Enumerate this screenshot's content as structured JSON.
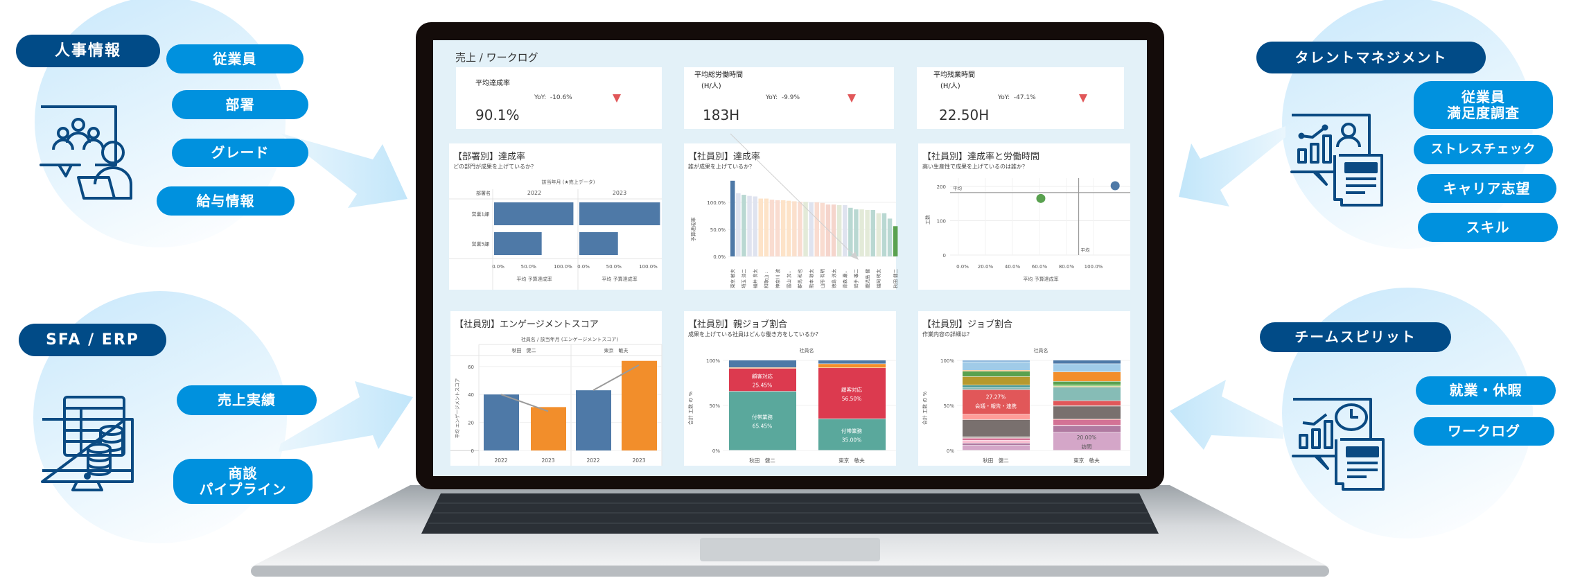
{
  "left_top": {
    "header": "人事情報",
    "items": [
      "従業員",
      "部署",
      "グレード",
      "給与情報"
    ]
  },
  "left_bottom": {
    "header": "SFA / ERP",
    "items": [
      "売上実績",
      "商談\nパイプライン"
    ]
  },
  "right_top": {
    "header": "タレントマネジメント",
    "items": [
      "従業員\n満足度調査",
      "ストレスチェック",
      "キャリア志望",
      "スキル"
    ]
  },
  "right_bottom": {
    "header": "チームスピリット",
    "items": [
      "就業・休暇",
      "ワークログ"
    ]
  },
  "colors": {
    "pill_dark": "#014b87",
    "pill_light": "#0091de",
    "icon": "#0a4a82",
    "down": "#e15759"
  },
  "dashboard": {
    "title": "売上 / ワークログ",
    "kpis": [
      {
        "label": "平均達成率",
        "yoy_label": "YoY:",
        "yoy": "-10.6%",
        "value": "90.1%"
      },
      {
        "label": "平均総労働時間\n　(H/人)",
        "yoy_label": "YoY:",
        "yoy": "-9.9%",
        "value": "183H"
      },
      {
        "label": "平均残業時間\n　(H/人)",
        "yoy_label": "YoY:",
        "yoy": "-47.1%",
        "value": "22.50H"
      }
    ]
  },
  "chart_data": [
    {
      "type": "bar",
      "orientation": "horizontal",
      "title": "【部署別】達成率",
      "subtitle": "どの部門が成果を上げているか？",
      "column_header": "該当年月 (★売上データ)",
      "row_header": "部署名",
      "categories": [
        "営業1課",
        "営業5課"
      ],
      "series": [
        {
          "name": "2022",
          "values": [
            115,
            69
          ]
        },
        {
          "name": "2023",
          "values": [
            117,
            56
          ]
        }
      ],
      "xticks": [
        0,
        50,
        100
      ],
      "xtick_labels": [
        "0.0%",
        "50.0%",
        "100.0%"
      ],
      "xlabel": "平均 予算達成率",
      "xlim": [
        0,
        121
      ],
      "color": "#4e79a7"
    },
    {
      "type": "bar",
      "title": "【社員別】達成率",
      "subtitle": "誰が成果を上げているか？",
      "ylabel": "予算達成率",
      "ylim": [
        0,
        140
      ],
      "yticks": [
        0,
        50,
        100
      ],
      "ytick_labels": [
        "0.0%",
        "50.0%",
        "100.0%"
      ],
      "values": [
        140,
        117,
        114,
        112,
        111,
        107,
        107,
        105,
        104,
        104,
        103,
        102,
        101,
        101,
        100,
        100,
        99,
        96,
        96,
        95,
        95,
        90,
        87,
        87,
        86,
        86,
        80,
        80,
        70,
        56
      ],
      "labels": [
        "東京 敏夫",
        "",
        "埼玉 浩二",
        "",
        "福井 良太",
        "",
        "和歌山 :",
        "",
        "神奈川 波",
        "",
        "富山 加..",
        "",
        "群馬 和也",
        "",
        "熊本 敦太",
        "",
        "山形 有明",
        "",
        "徳島 涼太",
        "",
        "青森 巖..",
        "",
        "岩手 雄二",
        "",
        "鹿児島 健",
        "",
        "福岡 明太",
        "",
        "",
        "秋田 健二"
      ],
      "colors": [
        "#4e79a7",
        "#dfe3ef",
        "#b9d8d2",
        "#dfe3ef",
        "#dfe3ef",
        "#fde3c8",
        "#fde3c8",
        "#f9dcd0",
        "#f9dcd0",
        "#fde3c8",
        "#fde3c8",
        "#fbe0cc",
        "#f9dcd0",
        "#e3ead8",
        "#dfe3ef",
        "#f9dcd0",
        "#f9dcd0",
        "#f5d5cc",
        "#f5d5cc",
        "#e3ead8",
        "#dfe3ef",
        "#b9d8d2",
        "#b9d8d2",
        "#e3ead8",
        "#e3ead8",
        "#b9d8d2",
        "#e3ead8",
        "#b9d8d2",
        "#b9d8d2",
        "#59a14f"
      ]
    },
    {
      "type": "scatter",
      "title": "【社員別】達成率と労働時間",
      "subtitle": "高い生産性で成果を上げているのは誰か？",
      "xlabel": "平均 予算達成率",
      "ylabel": "工数",
      "xlim": [
        0,
        127
      ],
      "ylim": [
        0,
        224
      ],
      "xticks": [
        0,
        20,
        40,
        60,
        80,
        100
      ],
      "xtick_labels": [
        "0.0%",
        "20.0%",
        "40.0%",
        "60.0%",
        "80.0%",
        "100.0%"
      ],
      "yticks": [
        0,
        100,
        200
      ],
      "ytick_labels": [
        "0",
        "100",
        "200"
      ],
      "points": [
        {
          "x": 116,
          "y": 202,
          "color": "#4e79a7"
        },
        {
          "x": 61,
          "y": 165,
          "color": "#59a14f"
        }
      ],
      "avg_x": 89,
      "avg_y": 182,
      "avg_label": "平均"
    },
    {
      "type": "bar",
      "title": "【社員別】エンゲージメントスコア",
      "header": "社員名 / 該当年月 (エンゲージメントスコア)",
      "ylabel": "平均 エンゲージメントスコア",
      "ylim": [
        0,
        64
      ],
      "yticks": [
        0,
        20,
        40,
        60
      ],
      "ytick_labels": [
        "0",
        "20",
        "40",
        "60"
      ],
      "groups": [
        {
          "name": "秋田　健二",
          "years": [
            "2022",
            "2023"
          ],
          "values": [
            40,
            31
          ]
        },
        {
          "name": "東京　敏夫",
          "years": [
            "2022",
            "2023"
          ],
          "values": [
            43,
            64
          ]
        }
      ],
      "colors": [
        "#4e79a7",
        "#f28e2b"
      ]
    },
    {
      "type": "bar",
      "stacked": true,
      "title": "【社員別】親ジョブ割合",
      "subtitle": "成果を上げている社員はどんな働き方をしているか？",
      "header": "社員名",
      "ylabel": "合計 工数 の %",
      "yticks": [
        0,
        50,
        100
      ],
      "ytick_labels": [
        "0%",
        "50%",
        "100%"
      ],
      "categories": [
        "秋田　健二",
        "東京　敏夫"
      ],
      "stacks": [
        [
          {
            "label": "付帯業務",
            "pct": 65.45,
            "text": "65.45%",
            "color": "#5aa89c"
          },
          {
            "label": "顧客対応",
            "pct": 25.45,
            "text": "25.45%",
            "color": "#dc3a4f"
          },
          {
            "pct": 0.9,
            "color": "#f28e2b"
          },
          {
            "pct": 8.2,
            "color": "#4e79a7"
          }
        ],
        [
          {
            "label": "付帯業務",
            "pct": 35.0,
            "text": "35.00%",
            "color": "#5aa89c"
          },
          {
            "label": "顧客対応",
            "pct": 56.5,
            "text": "56.50%",
            "color": "#dc3a4f"
          },
          {
            "pct": 4.5,
            "color": "#f28e2b"
          },
          {
            "pct": 4.0,
            "color": "#4e79a7"
          }
        ]
      ]
    },
    {
      "type": "bar",
      "stacked": true,
      "title": "【社員別】ジョブ割合",
      "subtitle": "作業内容の詳細は？",
      "header": "社員名",
      "ylabel": "合計 工数 の %",
      "yticks": [
        0,
        50,
        100
      ],
      "ytick_labels": [
        "0%",
        "50%",
        "100%"
      ],
      "categories": [
        "秋田　健二",
        "東京　敏夫"
      ],
      "stacks": [
        [
          {
            "pct": 5.5,
            "color": "#d4a6c8"
          },
          {
            "pct": 2.5,
            "color": "#b07aa1"
          },
          {
            "pct": 3,
            "color": "#fabfd2"
          },
          {
            "pct": 2.5,
            "color": "#d37295"
          },
          {
            "pct": 1.5,
            "color": "#bab0ac"
          },
          {
            "pct": 19,
            "color": "#79706e"
          },
          {
            "pct": 6,
            "color": "#ff9d9a"
          },
          {
            "pct": 27.27,
            "text": "27.27%",
            "label": "会議・報告・連携",
            "color": "#e15759"
          },
          {
            "pct": 2.5,
            "color": "#86bcb6"
          },
          {
            "pct": 2.5,
            "color": "#499894"
          },
          {
            "pct": 9.5,
            "color": "#b6992d"
          },
          {
            "pct": 6,
            "color": "#59a14f"
          },
          {
            "pct": 1,
            "color": "#f28e2b"
          },
          {
            "pct": 9,
            "color": "#a0cbe8"
          },
          {
            "pct": 2.23,
            "color": "#8fb9dd"
          }
        ],
        [
          {
            "pct": 20.0,
            "text": "20.00%",
            "label": "訪問",
            "color": "#d4a6c8"
          },
          {
            "pct": 7.5,
            "color": "#b07aa1"
          },
          {
            "pct": 0.5,
            "color": "#fabfd2"
          },
          {
            "pct": 6,
            "color": "#d37295"
          },
          {
            "pct": 0.5,
            "color": "#ff9d9a"
          },
          {
            "pct": 14.5,
            "color": "#79706e"
          },
          {
            "pct": 0.5,
            "color": "#bab0ac"
          },
          {
            "pct": 5.5,
            "color": "#e15759"
          },
          {
            "pct": 15,
            "color": "#86bcb6"
          },
          {
            "pct": 1,
            "color": "#b6992d"
          },
          {
            "pct": 1.5,
            "color": "#8cd17d"
          },
          {
            "pct": 4,
            "color": "#59a14f"
          },
          {
            "pct": 10.5,
            "color": "#f28e2b"
          },
          {
            "pct": 9,
            "color": "#a0cbe8"
          },
          {
            "pct": 4,
            "color": "#4e79a7"
          }
        ]
      ]
    }
  ]
}
